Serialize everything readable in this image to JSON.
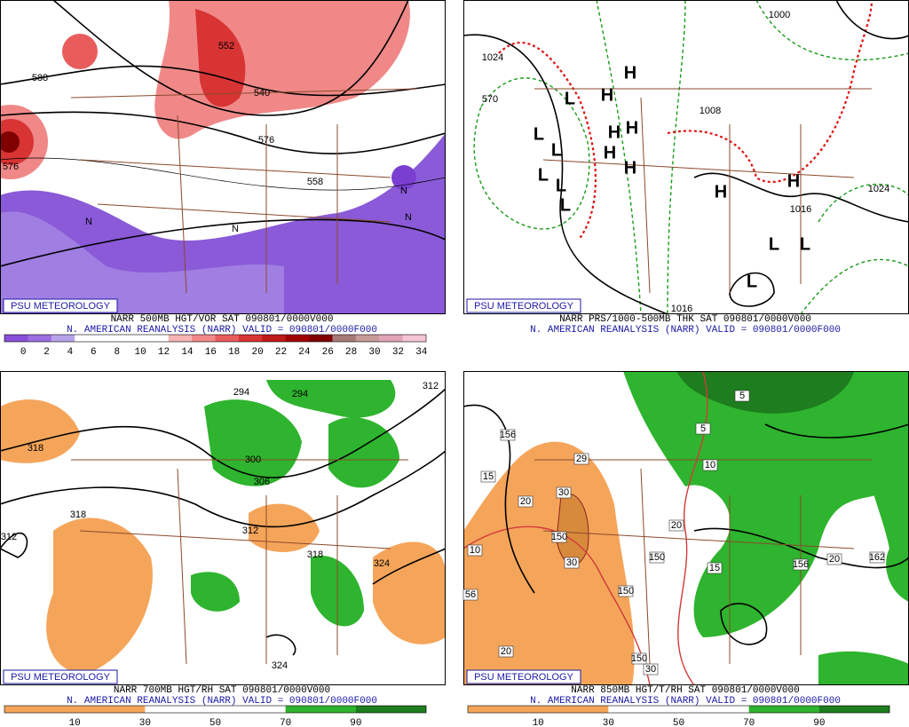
{
  "panels": [
    {
      "branding": "PSU METEOROLOGY",
      "line1": "NARR 500MB HGT/VOR SAT 090801/0000V000",
      "line2": "N. AMERICAN REANALYSIS (NARR) VALID = 090801/0000F000",
      "colorbar": {
        "labels": [
          0,
          2,
          4,
          6,
          8,
          10,
          12,
          14,
          16,
          18,
          20,
          22,
          24,
          26,
          28,
          30,
          32,
          34
        ],
        "colors": [
          "#8a4fd8",
          "#9c6ee0",
          "#b8a2ea",
          "#ffffff",
          "#ffffff",
          "#ffffff",
          "#ffffff",
          "#f6b4b4",
          "#f08888",
          "#e85c5c",
          "#d83434",
          "#c01a1a",
          "#a00000",
          "#800000",
          "#a87a7a",
          "#c89a9a",
          "#e0a4b4",
          "#f4c4d4"
        ]
      },
      "labels": [
        {
          "text": "588"
        },
        {
          "text": "576"
        },
        {
          "text": "552"
        },
        {
          "text": "540"
        },
        {
          "text": "558"
        },
        {
          "text": "576"
        },
        {
          "text": "N"
        },
        {
          "text": "N"
        },
        {
          "text": "N"
        },
        {
          "text": "N"
        }
      ]
    },
    {
      "branding": "PSU METEOROLOGY",
      "line1": "NARR PRS/1000-500MB THK SAT 090801/0000V000",
      "line2": "N. AMERICAN REANALYSIS (NARR) VALID = 090801/0000F000",
      "labels": [
        {
          "text": "1024"
        },
        {
          "text": "570"
        },
        {
          "text": "1000"
        },
        {
          "text": "1008"
        },
        {
          "text": "1024"
        },
        {
          "text": "1016"
        },
        {
          "text": "1016"
        },
        {
          "text": "H",
          "color": "#1e9ad6"
        },
        {
          "text": "H",
          "color": "#1e9ad6"
        },
        {
          "text": "H",
          "color": "#1e9ad6"
        },
        {
          "text": "H",
          "color": "#1e9ad6"
        },
        {
          "text": "H",
          "color": "#1e9ad6"
        },
        {
          "text": "H",
          "color": "#1e9ad6"
        },
        {
          "text": "H",
          "color": "#1e9ad6"
        },
        {
          "text": "H",
          "color": "#1e9ad6"
        },
        {
          "text": "L",
          "color": "#e01010"
        },
        {
          "text": "L",
          "color": "#e01010"
        },
        {
          "text": "L",
          "color": "#e01010"
        },
        {
          "text": "L",
          "color": "#e01010"
        },
        {
          "text": "L",
          "color": "#e01010"
        },
        {
          "text": "L",
          "color": "#e01010"
        },
        {
          "text": "L",
          "color": "#e01010"
        },
        {
          "text": "L",
          "color": "#e01010"
        },
        {
          "text": "L",
          "color": "#e01010"
        }
      ]
    },
    {
      "branding": "PSU METEOROLOGY",
      "line1": "NARR 700MB HGT/RH SAT 090801/0000V000",
      "line2": "N. AMERICAN REANALYSIS (NARR) VALID = 090801/0000F000",
      "colorbar": {
        "labels": [
          10,
          30,
          50,
          70,
          90
        ],
        "colors": [
          "#f5a55a",
          "#f5a55a",
          "#ffffff",
          "#ffffff",
          "#2eb42e",
          "#1e7d1e"
        ]
      },
      "labels": [
        {
          "text": "318"
        },
        {
          "text": "318"
        },
        {
          "text": "312"
        },
        {
          "text": "294"
        },
        {
          "text": "294"
        },
        {
          "text": "300"
        },
        {
          "text": "306"
        },
        {
          "text": "312"
        },
        {
          "text": "318"
        },
        {
          "text": "324"
        },
        {
          "text": "324"
        },
        {
          "text": "312"
        }
      ]
    },
    {
      "branding": "PSU METEOROLOGY",
      "line1": "NARR 850MB HGT/T/RH SAT 090801/0000V000",
      "line2": "N. AMERICAN REANALYSIS (NARR) VALID = 090801/0000F000",
      "colorbar": {
        "labels": [
          10,
          30,
          50,
          70,
          90
        ],
        "colors": [
          "#f5a55a",
          "#f5a55a",
          "#ffffff",
          "#ffffff",
          "#2eb42e",
          "#1e7d1e"
        ]
      },
      "labels": [
        {
          "text": "156"
        },
        {
          "text": "15"
        },
        {
          "text": "29"
        },
        {
          "text": "30"
        },
        {
          "text": "20"
        },
        {
          "text": "10"
        },
        {
          "text": "150"
        },
        {
          "text": "30"
        },
        {
          "text": "150"
        },
        {
          "text": "20"
        },
        {
          "text": "150"
        },
        {
          "text": "15"
        },
        {
          "text": "156"
        },
        {
          "text": "162"
        },
        {
          "text": "20"
        },
        {
          "text": "10"
        },
        {
          "text": "5"
        },
        {
          "text": "5"
        },
        {
          "text": "56"
        },
        {
          "text": "20"
        },
        {
          "text": "30"
        },
        {
          "text": "150"
        }
      ]
    }
  ]
}
